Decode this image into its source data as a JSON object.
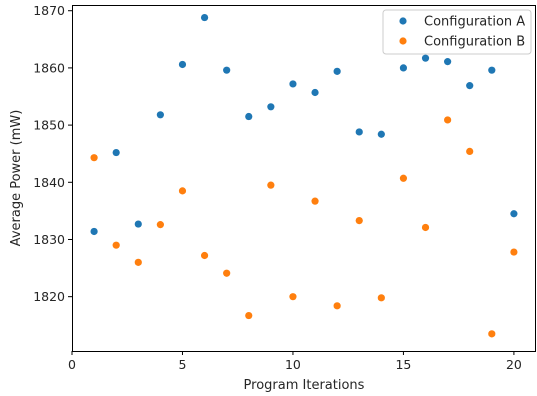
{
  "chart_data": {
    "type": "scatter",
    "title": "",
    "xlabel": "Program Iterations",
    "ylabel": "Average Power (mW)",
    "xlim": [
      0,
      21
    ],
    "ylim": [
      1810.5,
      1871
    ],
    "xticks": [
      0,
      5,
      10,
      15,
      20
    ],
    "yticks": [
      1820,
      1830,
      1840,
      1850,
      1860,
      1870
    ],
    "grid": false,
    "legend_position": "top-right",
    "series": [
      {
        "name": "Configuration A",
        "color": "#1f77b4",
        "x": [
          1,
          2,
          3,
          4,
          5,
          6,
          7,
          8,
          9,
          10,
          11,
          12,
          13,
          14,
          15,
          16,
          17,
          18,
          19,
          20
        ],
        "y": [
          1831.4,
          1845.2,
          1832.7,
          1851.8,
          1860.6,
          1868.8,
          1859.6,
          1851.5,
          1853.2,
          1857.2,
          1855.7,
          1859.4,
          1848.8,
          1848.4,
          1860.0,
          1861.7,
          1861.1,
          1856.9,
          1859.6,
          1834.5
        ]
      },
      {
        "name": "Configuration B",
        "color": "#ff7f0e",
        "x": [
          1,
          2,
          3,
          4,
          5,
          6,
          7,
          8,
          9,
          10,
          11,
          12,
          13,
          14,
          15,
          16,
          17,
          18,
          19,
          20
        ],
        "y": [
          1844.3,
          1829.0,
          1826.0,
          1832.6,
          1838.5,
          1827.2,
          1824.1,
          1816.7,
          1839.5,
          1820.0,
          1836.7,
          1818.4,
          1833.3,
          1819.8,
          1840.7,
          1832.1,
          1850.9,
          1845.4,
          1813.5,
          1827.8
        ]
      }
    ]
  }
}
